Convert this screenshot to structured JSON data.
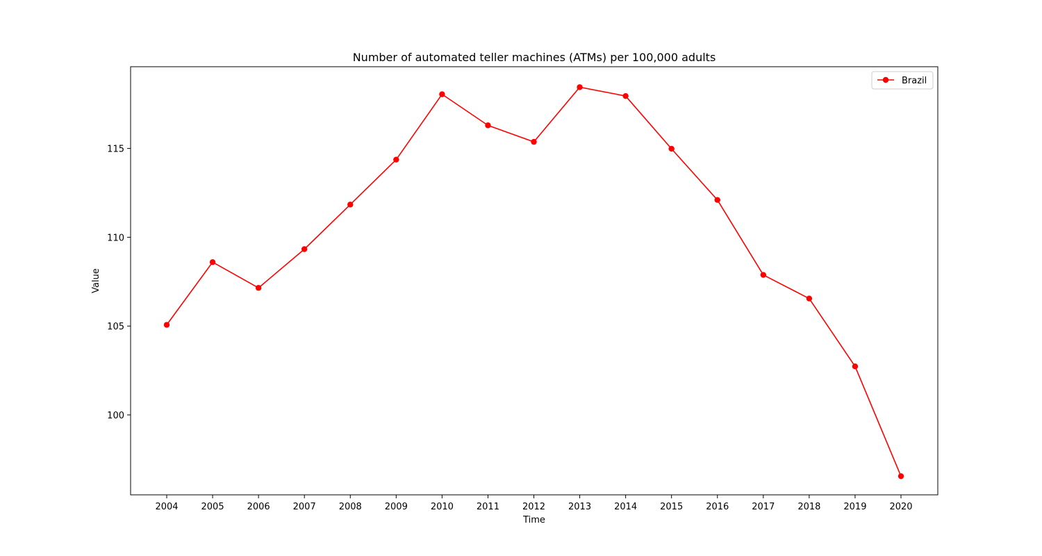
{
  "chart_data": {
    "type": "line",
    "title": "Number of automated teller machines (ATMs) per 100,000 adults",
    "xlabel": "Time",
    "ylabel": "Value",
    "x": [
      "2004",
      "2005",
      "2006",
      "2007",
      "2008",
      "2009",
      "2010",
      "2011",
      "2012",
      "2013",
      "2014",
      "2015",
      "2016",
      "2017",
      "2018",
      "2019",
      "2020"
    ],
    "series": [
      {
        "name": "Brazil",
        "color": "#ff0000",
        "marker": "circle",
        "values": [
          105.07,
          108.6,
          107.15,
          109.33,
          111.84,
          114.37,
          118.05,
          116.3,
          115.37,
          118.45,
          117.95,
          114.98,
          112.1,
          107.88,
          106.55,
          102.73,
          96.55
        ]
      }
    ],
    "ylim": [
      95.5,
      119.6
    ],
    "yticks": [
      100,
      105,
      110,
      115
    ],
    "legend": "top-right",
    "grid": false
  }
}
